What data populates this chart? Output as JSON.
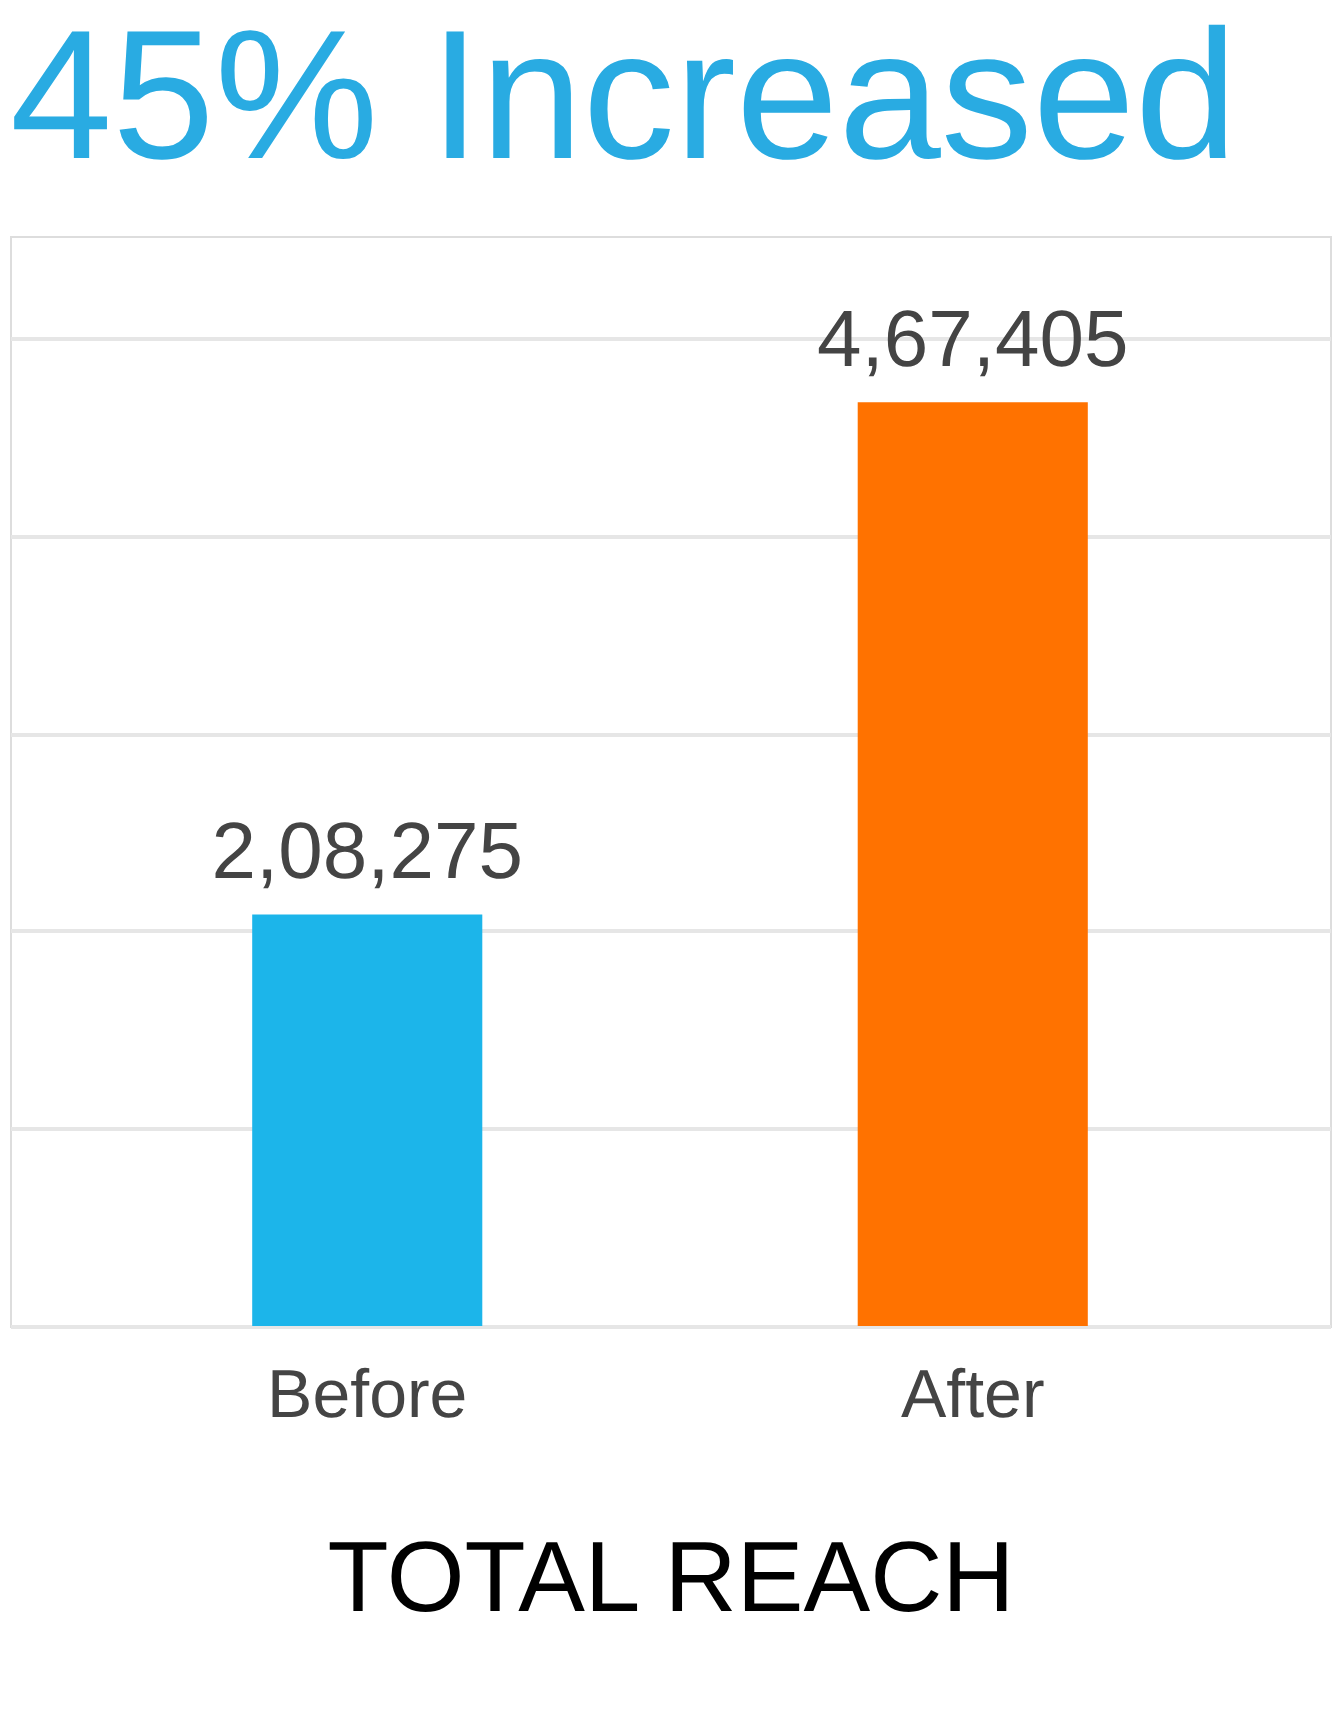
{
  "chart_data": {
    "type": "bar",
    "title": "45% Increased",
    "xlabel": "TOTAL REACH",
    "categories": [
      "Before",
      "After"
    ],
    "values": [
      208275,
      467405
    ],
    "colors": [
      "#1cb5ea",
      "#ff7200"
    ],
    "value_labels": [
      "2,08,275",
      "4,67,405"
    ],
    "grid": "y",
    "tick_labels": "x"
  }
}
